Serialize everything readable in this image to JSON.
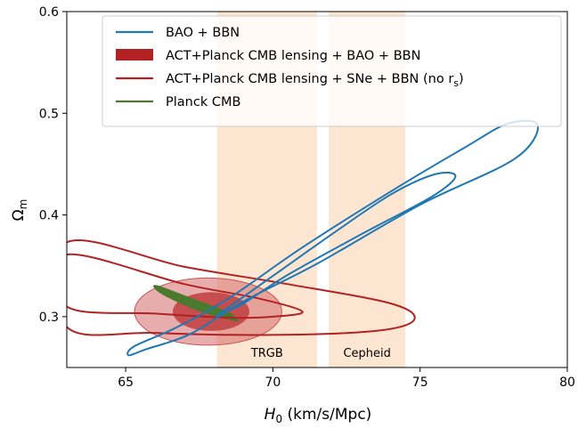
{
  "chart_data": {
    "type": "contour",
    "xlabel": "H0 (km/s/Mpc)",
    "ylabel": "Ωm",
    "xlim": [
      63,
      80
    ],
    "ylim": [
      0.25,
      0.6
    ],
    "xticks": [
      65,
      70,
      75,
      80
    ],
    "yticks": [
      0.3,
      0.4,
      0.5,
      0.6
    ],
    "x_tick_labels": [
      "65",
      "70",
      "75",
      "80"
    ],
    "y_tick_labels": [
      "0.3",
      "0.4",
      "0.5",
      "0.6"
    ],
    "grid": false,
    "legend_position": "top",
    "bands": [
      {
        "name": "TRGB",
        "x_range": [
          68.1,
          71.5
        ],
        "color": "#fde3cc"
      },
      {
        "name": "Cepheid",
        "x_range": [
          71.9,
          74.5
        ],
        "color": "#fde3cc"
      }
    ],
    "series": [
      {
        "name": "BAO + BBN",
        "style": "line",
        "color": "#1f77b4",
        "contours": [
          {
            "level": "68%",
            "points": [
              [
                68.2,
                0.303
              ],
              [
                70.0,
                0.34
              ],
              [
                72.0,
                0.381
              ],
              [
                74.0,
                0.42
              ],
              [
                75.5,
                0.44
              ],
              [
                76.2,
                0.438
              ],
              [
                75.4,
                0.418
              ],
              [
                73.0,
                0.381
              ],
              [
                70.5,
                0.341
              ],
              [
                69.0,
                0.313
              ],
              [
                68.4,
                0.305
              ]
            ]
          },
          {
            "level": "95%",
            "points": [
              [
                65.3,
                0.271
              ],
              [
                66.7,
                0.289
              ],
              [
                68.5,
                0.318
              ],
              [
                71.0,
                0.368
              ],
              [
                74.0,
                0.423
              ],
              [
                76.5,
                0.466
              ],
              [
                78.0,
                0.49
              ],
              [
                79.0,
                0.488
              ],
              [
                78.2,
                0.455
              ],
              [
                75.0,
                0.41
              ],
              [
                71.5,
                0.352
              ],
              [
                69.0,
                0.315
              ],
              [
                67.2,
                0.283
              ],
              [
                65.7,
                0.268
              ],
              [
                65.1,
                0.262
              ]
            ]
          }
        ]
      },
      {
        "name": "ACT+Planck CMB lensing + BAO + BBN",
        "style": "filled",
        "color": "#b22222",
        "contours": [
          {
            "level": "68%",
            "center": [
              67.9,
              0.305
            ],
            "semi_axes": [
              1.3,
              0.019
            ]
          },
          {
            "level": "95%",
            "center": [
              67.8,
              0.305
            ],
            "semi_axes": [
              2.5,
              0.033
            ]
          }
        ]
      },
      {
        "name": "ACT+Planck CMB lensing + SNe + BBN (no r_s)",
        "style": "line",
        "color": "#b22222",
        "contours": [
          {
            "level": "68%",
            "points": [
              [
                63.0,
                0.31
              ],
              [
                66.0,
                0.303
              ],
              [
                68.5,
                0.299
              ],
              [
                70.0,
                0.3
              ],
              [
                71.0,
                0.305
              ],
              [
                69.5,
                0.318
              ],
              [
                67.0,
                0.332
              ],
              [
                63.0,
                0.361
              ]
            ]
          },
          {
            "level": "95%",
            "points": [
              [
                63.0,
                0.29
              ],
              [
                66.0,
                0.284
              ],
              [
                70.0,
                0.282
              ],
              [
                73.5,
                0.286
              ],
              [
                74.8,
                0.297
              ],
              [
                74.0,
                0.313
              ],
              [
                70.5,
                0.332
              ],
              [
                67.0,
                0.349
              ],
              [
                63.0,
                0.373
              ]
            ]
          }
        ]
      },
      {
        "name": "Planck CMB",
        "style": "filled",
        "color": "#4a7a2e",
        "contours": [
          {
            "level": "95%",
            "points": [
              [
                66.1,
                0.33
              ],
              [
                67.2,
                0.318
              ],
              [
                68.4,
                0.305
              ],
              [
                68.8,
                0.297
              ],
              [
                68.6,
                0.297
              ],
              [
                67.5,
                0.306
              ],
              [
                66.4,
                0.32
              ],
              [
                66.0,
                0.328
              ]
            ]
          }
        ]
      }
    ]
  },
  "legend": {
    "items": [
      {
        "label": "BAO + BBN",
        "color": "#1f77b4",
        "kind": "line"
      },
      {
        "label": "ACT+Planck CMB lensing + BAO + BBN",
        "color": "#b22222",
        "kind": "patch"
      },
      {
        "label": "ACT+Planck CMB lensing + SNe + BBN (no r",
        "sub": "s",
        "suffix": ")",
        "color": "#b22222",
        "kind": "line"
      },
      {
        "label": "Planck CMB",
        "color": "#4a7a2e",
        "kind": "line"
      }
    ]
  },
  "axis_titles": {
    "x_main": "H",
    "x_sub": "0",
    "x_rest": " (km/s/Mpc)",
    "y_main": "Ω",
    "y_sub": "m"
  }
}
